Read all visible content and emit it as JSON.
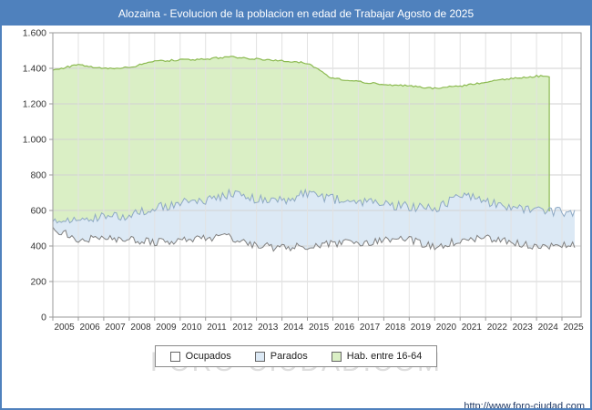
{
  "watermark": {
    "text": "FORO-CIUDAD.COM"
  },
  "footer": {
    "url": "http://www.foro-ciudad.com"
  },
  "chart_data": {
    "type": "area",
    "title": "Alozaina - Evolucion de la poblacion en edad de Trabajar Agosto de 2025",
    "legend_position": "bottom",
    "grid": true,
    "x_range": [
      2005,
      2025.75
    ],
    "x_end": 2025.58,
    "y_range": [
      0,
      1600
    ],
    "years": [
      2005,
      2006,
      2007,
      2008,
      2009,
      2010,
      2011,
      2012,
      2013,
      2014,
      2015,
      2016,
      2017,
      2018,
      2019,
      2020,
      2021,
      2022,
      2023,
      2024,
      2025
    ],
    "x_tick_labels": [
      "2005",
      "2006",
      "2007",
      "2008",
      "2009",
      "2010",
      "2011",
      "2012",
      "2013",
      "2014",
      "2015",
      "2016",
      "2017",
      "2018",
      "2019",
      "2020",
      "2021",
      "2022",
      "2023",
      "2024",
      "2025"
    ],
    "y_tick_values": [
      0,
      200,
      400,
      600,
      800,
      1000,
      1200,
      1400,
      1600
    ],
    "y_tick_labels": [
      "0",
      "200",
      "400",
      "600",
      "800",
      "1.000",
      "1.200",
      "1.400",
      "1.600"
    ],
    "series": [
      {
        "name": "Ocupados",
        "stack": "base",
        "color_fill": "#ffffff",
        "color_line": "#7f7f7f",
        "values": [
          500,
          435,
          445,
          440,
          420,
          430,
          445,
          450,
          400,
          390,
          400,
          410,
          420,
          430,
          435,
          395,
          430,
          450,
          425,
          400,
          410
        ]
      },
      {
        "name": "Parados",
        "stack": "on-ocupados",
        "color_fill": "#dce9f5",
        "color_line": "#8ea9c4",
        "values": [
          40,
          120,
          125,
          125,
          195,
          210,
          210,
          245,
          265,
          265,
          300,
          255,
          230,
          205,
          185,
          210,
          260,
          195,
          195,
          200,
          180
        ]
      },
      {
        "name": "Hab. entre 16-64",
        "stack": "none-total",
        "color_fill": "#daefc5",
        "color_line": "#8cba51",
        "values": [
          1390,
          1420,
          1398,
          1405,
          1440,
          1447,
          1452,
          1465,
          1452,
          1442,
          1430,
          1342,
          1326,
          1310,
          1300,
          1288,
          1300,
          1322,
          1342,
          1356,
          1356
        ],
        "end_x": 2024.5
      }
    ]
  }
}
